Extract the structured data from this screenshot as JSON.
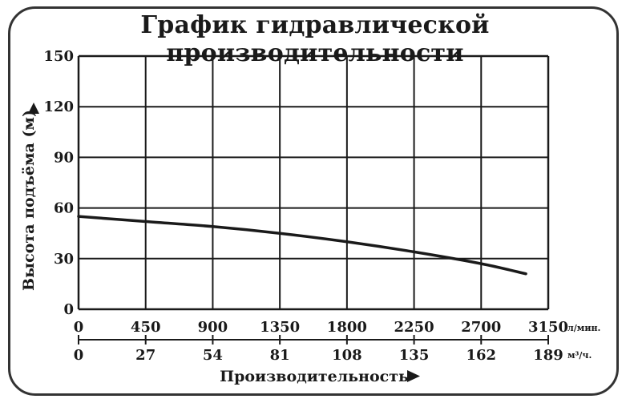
{
  "chart_data": {
    "type": "line",
    "title": "График гидравлической производительности",
    "ylabel": "Высота подъёма (м)",
    "xlabel": "Производительность",
    "ylim": [
      0,
      150
    ],
    "yticks": [
      "0",
      "30",
      "60",
      "90",
      "120",
      "150"
    ],
    "xlim": [
      0,
      3150
    ],
    "x_primary": {
      "unit": "л/мин.",
      "ticks": [
        "0",
        "450",
        "900",
        "1350",
        "1800",
        "2250",
        "2700",
        "3150"
      ]
    },
    "x_secondary": {
      "unit": "м³/ч.",
      "ticks": [
        "0",
        "27",
        "54",
        "81",
        "108",
        "135",
        "162",
        "189"
      ]
    },
    "grid": true,
    "series": [
      {
        "x": [
          0,
          450,
          900,
          1350,
          1800,
          2250,
          2700,
          3000
        ],
        "y": [
          55,
          52,
          49,
          45,
          40,
          34,
          27,
          21
        ]
      }
    ]
  },
  "colors": {
    "line": "#1a1a1a",
    "grid": "#1a1a1a",
    "frame": "#333333"
  }
}
